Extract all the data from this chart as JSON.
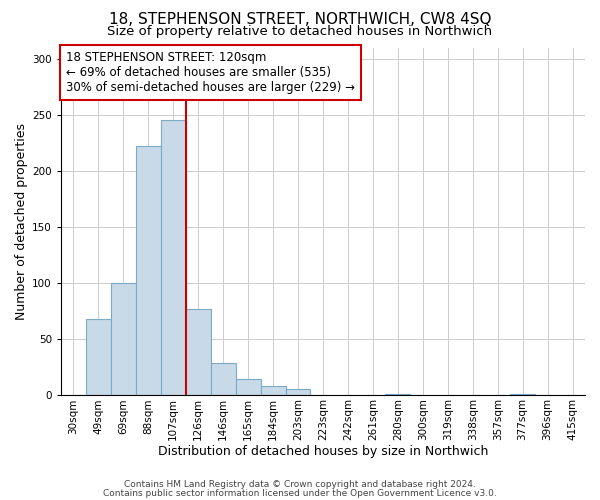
{
  "title": "18, STEPHENSON STREET, NORTHWICH, CW8 4SQ",
  "subtitle": "Size of property relative to detached houses in Northwich",
  "xlabel": "Distribution of detached houses by size in Northwich",
  "ylabel": "Number of detached properties",
  "bar_labels": [
    "30sqm",
    "49sqm",
    "69sqm",
    "88sqm",
    "107sqm",
    "126sqm",
    "146sqm",
    "165sqm",
    "184sqm",
    "203sqm",
    "223sqm",
    "242sqm",
    "261sqm",
    "280sqm",
    "300sqm",
    "319sqm",
    "338sqm",
    "357sqm",
    "377sqm",
    "396sqm",
    "415sqm"
  ],
  "bar_values": [
    0,
    68,
    100,
    222,
    245,
    77,
    29,
    15,
    8,
    6,
    0,
    0,
    0,
    1,
    0,
    0,
    0,
    0,
    1,
    0,
    0
  ],
  "bar_color": "#c8d9e8",
  "bar_edge_color": "#7baac8",
  "vline_color": "#cc0000",
  "vline_x_index": 5,
  "annotation_line1": "18 STEPHENSON STREET: 120sqm",
  "annotation_line2": "← 69% of detached houses are smaller (535)",
  "annotation_line3": "30% of semi-detached houses are larger (229) →",
  "ylim": [
    0,
    310
  ],
  "yticks": [
    0,
    50,
    100,
    150,
    200,
    250,
    300
  ],
  "background_color": "#ffffff",
  "grid_color": "#cccccc",
  "title_fontsize": 11,
  "subtitle_fontsize": 9.5,
  "xlabel_fontsize": 9,
  "ylabel_fontsize": 9,
  "tick_fontsize": 7.5,
  "annotation_fontsize": 8.5,
  "footer_fontsize": 6.5,
  "footer_line1": "Contains HM Land Registry data © Crown copyright and database right 2024.",
  "footer_line2": "Contains public sector information licensed under the Open Government Licence v3.0."
}
